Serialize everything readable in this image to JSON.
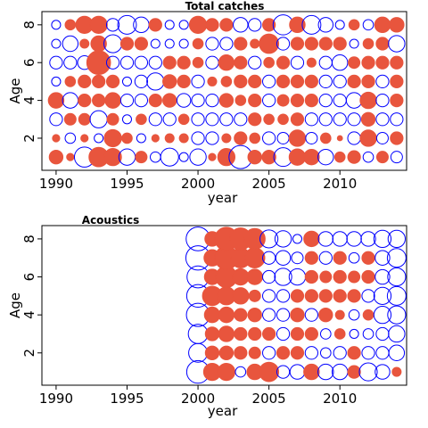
{
  "chart_data": [
    {
      "type": "scatter",
      "title": "Total catches",
      "xlabel": "year",
      "ylabel": "Age",
      "xlim": [
        1989,
        2014.7
      ],
      "ylim": [
        0.3,
        8.7
      ],
      "xticks": [
        1990,
        1995,
        2000,
        2005,
        2010
      ],
      "yticks": [
        2,
        4,
        6,
        8
      ],
      "legend": "none",
      "grid": false,
      "colors": {
        "positive": "#e8553d",
        "negative": "#0000ff"
      },
      "value_scale": "relative residual; sign: + filled red, - open blue",
      "years": [
        1990,
        1991,
        1992,
        1993,
        1994,
        1995,
        1996,
        1997,
        1998,
        1999,
        2000,
        2001,
        2002,
        2003,
        2004,
        2005,
        2006,
        2007,
        2008,
        2009,
        2010,
        2011,
        2012,
        2013,
        2014
      ],
      "ages": [
        1,
        2,
        3,
        4,
        5,
        6,
        7,
        8
      ],
      "residuals": {
        "1": [
          0.35,
          0.1,
          -0.75,
          0.7,
          0.55,
          -0.5,
          0.25,
          -0.2,
          -0.6,
          -0.15,
          -0.5,
          0.1,
          0.55,
          -1.0,
          0.35,
          0.35,
          -0.65,
          0.5,
          0.45,
          -0.45,
          0.2,
          0.3,
          -0.2,
          0.25,
          -0.25
        ],
        "2": [
          0.1,
          -0.2,
          0.1,
          -0.15,
          0.55,
          0.2,
          -0.15,
          0.1,
          0.15,
          0.15,
          -0.3,
          -0.3,
          0.15,
          0.3,
          0.2,
          -0.3,
          -0.25,
          0.5,
          -0.25,
          0.2,
          0.05,
          -0.3,
          0.5,
          -0.25,
          0.3
        ],
        "3": [
          -0.3,
          0.25,
          0.25,
          -0.55,
          0.25,
          -0.15,
          0.2,
          -0.3,
          -0.3,
          0.2,
          -0.3,
          -0.3,
          -0.3,
          -0.3,
          0.3,
          0.2,
          0.2,
          0.3,
          -0.3,
          -0.3,
          -0.3,
          -0.3,
          0.35,
          -0.3,
          -0.3
        ],
        "4": [
          0.45,
          -0.45,
          0.3,
          0.3,
          0.45,
          -0.3,
          -0.3,
          0.3,
          0.35,
          -0.35,
          -0.3,
          -0.3,
          0.35,
          0.2,
          0.3,
          -0.3,
          0.25,
          0.3,
          0.3,
          -0.3,
          -0.3,
          -0.45,
          0.5,
          -0.3,
          0.3
        ],
        "5": [
          -0.15,
          0.2,
          0.3,
          0.3,
          0.3,
          -0.15,
          -0.3,
          -0.55,
          0.35,
          0.3,
          -0.3,
          0.15,
          0.2,
          0.3,
          0.3,
          -0.3,
          0.3,
          0.3,
          0.3,
          -0.3,
          -0.3,
          0.3,
          0.3,
          -0.3,
          0.3
        ],
        "6": [
          -0.3,
          -0.3,
          -0.35,
          1.05,
          -0.3,
          -0.3,
          -0.3,
          -0.3,
          0.3,
          0.3,
          0.2,
          -0.3,
          0.45,
          0.3,
          -0.3,
          0.2,
          0.3,
          -0.3,
          0.15,
          -0.3,
          -0.45,
          0.25,
          0.3,
          0.3,
          0.3
        ],
        "7": [
          -0.15,
          -0.45,
          0.15,
          0.45,
          -0.6,
          0.3,
          0.3,
          -0.15,
          -0.15,
          -0.15,
          0.2,
          -0.3,
          -0.3,
          0.3,
          0.15,
          0.7,
          -0.3,
          0.3,
          0.3,
          0.3,
          0.3,
          -0.15,
          0.2,
          0.3,
          -0.5
        ],
        "8": [
          -0.15,
          0.2,
          0.55,
          0.55,
          -0.3,
          -0.65,
          -0.45,
          0.3,
          -0.15,
          -0.15,
          0.55,
          0.3,
          0.3,
          -0.4,
          -0.3,
          0.3,
          -0.75,
          0.45,
          -0.65,
          -0.4,
          -0.15,
          0.2,
          -0.2,
          0.45,
          0.4
        ]
      }
    },
    {
      "type": "scatter",
      "title": "Acoustics",
      "xlabel": "year",
      "ylabel": "Age",
      "xlim": [
        1989,
        2014.7
      ],
      "ylim": [
        0.3,
        8.7
      ],
      "xticks": [
        1990,
        1995,
        2000,
        2005,
        2010
      ],
      "yticks": [
        2,
        4,
        6,
        8
      ],
      "legend": "none",
      "grid": false,
      "colors": {
        "positive": "#e8553d",
        "negative": "#0000ff"
      },
      "value_scale": "relative residual; sign: + filled red, - open blue",
      "years": [
        2000,
        2001,
        2002,
        2003,
        2004,
        2005,
        2006,
        2007,
        2008,
        2009,
        2010,
        2011,
        2012,
        2013,
        2014
      ],
      "ages": [
        1,
        2,
        3,
        4,
        5,
        6,
        7,
        8
      ],
      "residuals": {
        "1": [
          -0.95,
          0.55,
          0.55,
          -0.2,
          0.45,
          0.7,
          -0.3,
          -0.4,
          0.45,
          -0.45,
          -0.45,
          0.3,
          -0.6,
          -0.4,
          0.15
        ],
        "2": [
          -0.65,
          0.35,
          0.35,
          0.3,
          0.25,
          -0.3,
          0.3,
          0.3,
          -0.3,
          -0.2,
          -0.3,
          0.3,
          -0.3,
          -0.3,
          -0.45
        ],
        "3": [
          -0.7,
          0.35,
          0.45,
          0.3,
          0.3,
          0.3,
          -0.3,
          0.3,
          0.3,
          -0.2,
          0.2,
          -0.15,
          -0.2,
          -0.3,
          -0.5
        ],
        "4": [
          -1.0,
          0.45,
          0.45,
          0.3,
          0.35,
          -0.3,
          -0.3,
          0.35,
          -0.3,
          0.35,
          0.15,
          -0.2,
          0.2,
          -0.55,
          -0.6
        ],
        "5": [
          -0.95,
          0.7,
          0.6,
          0.5,
          0.25,
          -0.3,
          -0.3,
          0.3,
          0.3,
          0.3,
          0.3,
          0.3,
          -0.3,
          -0.55,
          -0.65
        ],
        "6": [
          -0.9,
          0.45,
          0.85,
          0.5,
          0.45,
          -0.3,
          -0.55,
          -0.5,
          0.3,
          0.25,
          0.3,
          0.25,
          0.3,
          -0.4,
          -0.6
        ],
        "7": [
          -1.1,
          0.5,
          1.0,
          0.75,
          0.75,
          -0.3,
          -0.4,
          -0.25,
          0.3,
          -0.3,
          0.3,
          -0.2,
          0.3,
          -0.4,
          -0.65
        ],
        "8": [
          -1.05,
          0.4,
          1.0,
          0.9,
          0.8,
          -0.6,
          -0.5,
          -0.15,
          0.45,
          -0.4,
          -0.4,
          -0.4,
          -0.4,
          -0.55,
          -0.55
        ]
      }
    }
  ]
}
